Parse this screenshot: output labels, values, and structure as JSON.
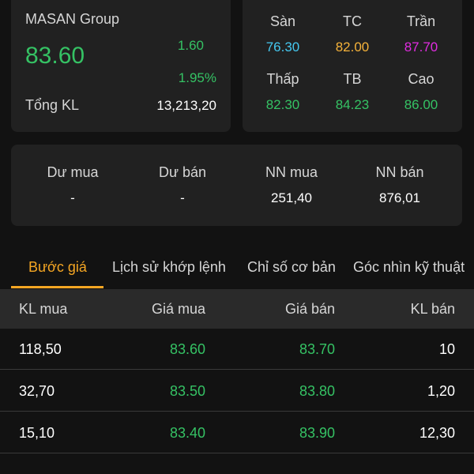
{
  "quote": {
    "company": "MASAN Group",
    "price": "83.60",
    "change": "1.60",
    "change_pct": "1.95%",
    "volume_label": "Tổng KL",
    "volume_value": "13,213,20"
  },
  "range": {
    "floor": {
      "label": "Sàn",
      "value": "76.30"
    },
    "reference": {
      "label": "TC",
      "value": "82.00"
    },
    "ceiling": {
      "label": "Trần",
      "value": "87.70"
    },
    "low": {
      "label": "Thấp",
      "value": "82.30"
    },
    "average": {
      "label": "TB",
      "value": "84.23"
    },
    "high": {
      "label": "Cao",
      "value": "86.00"
    }
  },
  "surplus": {
    "buy_surplus": {
      "label": "Dư mua",
      "value": "-"
    },
    "sell_surplus": {
      "label": "Dư bán",
      "value": "-"
    },
    "foreign_buy": {
      "label": "NN mua",
      "value": "251,40"
    },
    "foreign_sell": {
      "label": "NN bán",
      "value": "876,01"
    }
  },
  "tabs": [
    {
      "label": "Bước giá",
      "active": true
    },
    {
      "label": "Lịch sử khớp lệnh",
      "active": false
    },
    {
      "label": "Chỉ số cơ bản",
      "active": false
    },
    {
      "label": "Góc nhìn kỹ thuật",
      "active": false
    }
  ],
  "order_book": {
    "headers": {
      "bid_vol": "KL mua",
      "bid_price": "Giá mua",
      "ask_price": "Giá bán",
      "ask_vol": "KL bán"
    },
    "rows": [
      {
        "bid_vol": "118,50",
        "bid_price": "83.60",
        "ask_price": "83.70",
        "ask_vol": "10"
      },
      {
        "bid_vol": "32,70",
        "bid_price": "83.50",
        "ask_price": "83.80",
        "ask_vol": "1,20"
      },
      {
        "bid_vol": "15,10",
        "bid_price": "83.40",
        "ask_price": "83.90",
        "ask_vol": "12,30"
      }
    ]
  },
  "colors": {
    "up": "#35c264",
    "floor": "#45c8f0",
    "reference": "#f5b23a",
    "ceiling": "#e02ce0",
    "accent": "#f5a623"
  }
}
